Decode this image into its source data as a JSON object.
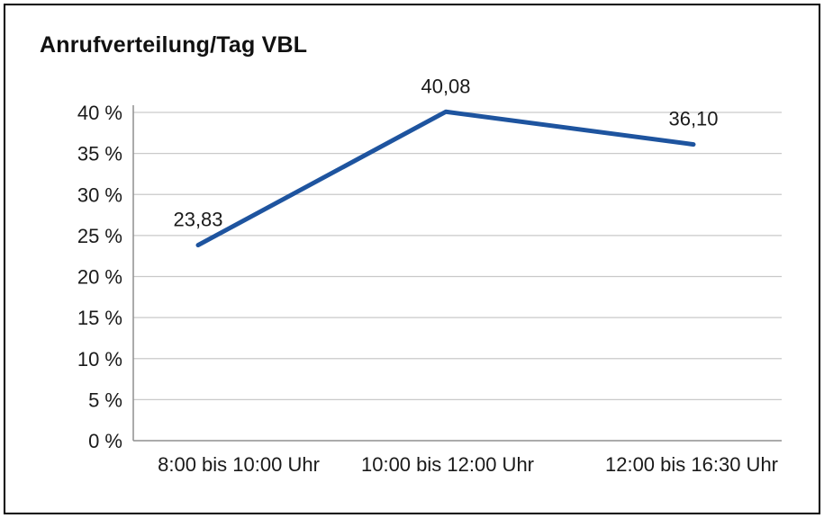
{
  "title": "Anrufverteilung/Tag VBL",
  "chart_data": {
    "type": "line",
    "title": "Anrufverteilung/Tag VBL",
    "categories": [
      "8:00 bis 10:00 Uhr",
      "10:00 bis 12:00 Uhr",
      "12:00 bis 16:30 Uhr"
    ],
    "values": [
      23.83,
      40.08,
      36.1
    ],
    "data_labels": [
      "23,83",
      "40,08",
      "36,10"
    ],
    "xlabel": "",
    "ylabel": "",
    "ylim": [
      0,
      40
    ],
    "ytick_step": 5,
    "ytick_suffix": " %",
    "grid": true,
    "legend": false,
    "colors": {
      "line": "#1E549F",
      "gridline": "#c9c9c9",
      "axis": "#8f8f8f",
      "text": "#1a1a1a",
      "border": "#000000"
    }
  }
}
